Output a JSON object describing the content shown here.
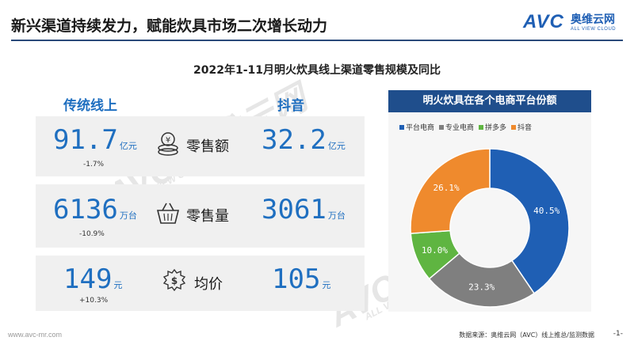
{
  "header": {
    "title": "新兴渠道持续发力，赋能炊具市场二次增长动力",
    "logo_mark": "AVC",
    "logo_cn": "奥维云网",
    "logo_en": "ALL VIEW CLOUD",
    "accent_color": "#1f5fb4"
  },
  "subtitle": "2022年1-11月明火炊具线上渠道零售规模及同比",
  "columns": {
    "left": "传统线上",
    "right": "抖音"
  },
  "metrics": [
    {
      "label": "零售额",
      "icon": "coins-icon",
      "left_value": "91.7",
      "left_unit": "亿元",
      "left_yoy": "-1.7%",
      "right_value": "32.2",
      "right_unit": "亿元"
    },
    {
      "label": "零售量",
      "icon": "basket-icon",
      "left_value": "6136",
      "left_unit": "万台",
      "left_yoy": "-10.9%",
      "right_value": "3061",
      "right_unit": "万台"
    },
    {
      "label": "均价",
      "icon": "price-tag-icon",
      "left_value": "149",
      "left_unit": "元",
      "left_yoy": "+10.3%",
      "right_value": "105",
      "right_unit": "元"
    }
  ],
  "chart_data": {
    "type": "pie",
    "title": "明火炊具在各个电商平台份额",
    "categories": [
      "平台电商",
      "专业电商",
      "拼多多",
      "抖音"
    ],
    "values": [
      40.5,
      23.3,
      10.0,
      26.1
    ],
    "value_labels": [
      "40.5%",
      "23.3%",
      "10.0%",
      "26.1%"
    ],
    "colors": [
      "#1f5fb4",
      "#7f7f7f",
      "#5fb541",
      "#ef8a2d"
    ],
    "legend_position": "top",
    "inner_radius_ratio": 0.5
  },
  "watermarks": [
    "AVC 奥维云网",
    "ALL VIEW CLOUD"
  ],
  "footer": {
    "website": "www.avc-mr.com",
    "source": "数据来源：奥维云网（AVC）线上推总/监测数据",
    "page": "-1-"
  }
}
